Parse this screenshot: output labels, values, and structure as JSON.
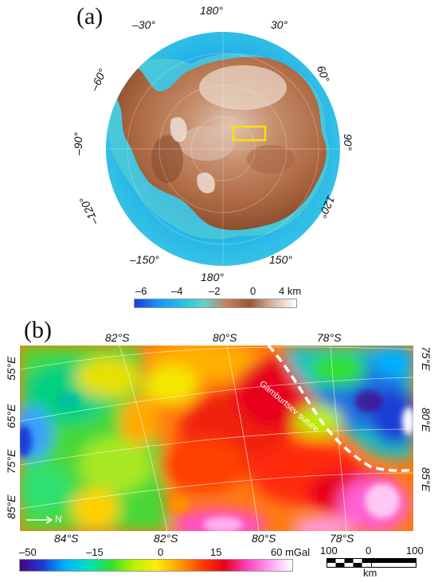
{
  "panel_a": {
    "label": "(a)",
    "longitudes": {
      "top": "180°",
      "top_left": "–30°",
      "top_right": "30°",
      "left_upper": "–60°",
      "right_upper": "60°",
      "left_mid": "–90°",
      "right_mid": "90°",
      "left_lower": "–120°",
      "right_lower": "120°",
      "bottom_left": "–150°",
      "bottom_right": "150°",
      "bottom": "180°"
    },
    "colorbar": {
      "ticks": [
        "–6",
        "–4",
        "–2",
        "0",
        "4 km"
      ],
      "colors": [
        "#1a3dd6",
        "#1e90ff",
        "#1fc0e6",
        "#5fd4c8",
        "#c48060",
        "#9a5535",
        "#d9b8a5",
        "#ffffff"
      ]
    },
    "highlight_box_color": "#ffe000"
  },
  "panel_b": {
    "label": "(b)",
    "lat_top": [
      "82°S",
      "80°S",
      "78°S"
    ],
    "lat_bottom": [
      "84°S",
      "82°S",
      "80°S",
      "78°S"
    ],
    "lon_left": [
      "55°E",
      "65°E",
      "75°E",
      "85°E"
    ],
    "lon_right": [
      "75°E",
      "80°E",
      "85°E"
    ],
    "suture_label": "Gamburtsev suture",
    "north_arrow": "N",
    "colorbar": {
      "ticks": [
        "–50",
        "–15",
        "0",
        "15",
        "60 mGal"
      ],
      "colors": [
        "#4b0082",
        "#1a3dd6",
        "#00b0ff",
        "#00e0c0",
        "#2ee02e",
        "#b8f000",
        "#ffee00",
        "#ffa000",
        "#ff4000",
        "#e8001a",
        "#ff40c0",
        "#ff9ef0",
        "#ffffff"
      ]
    },
    "scalebar": {
      "ticks": [
        "100",
        "0",
        "100"
      ],
      "unit": "km"
    }
  }
}
